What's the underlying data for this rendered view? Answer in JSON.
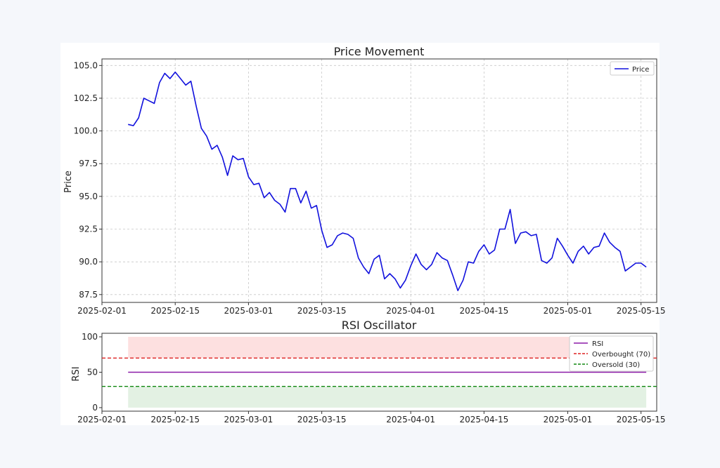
{
  "chart_data": [
    {
      "type": "line",
      "title": "Price Movement",
      "ylabel": "Price",
      "xlabel": "",
      "ylim": [
        86.9,
        105.5
      ],
      "xlim": [
        "2025-02-01",
        "2025-05-18"
      ],
      "grid": true,
      "legend_position": "top-right",
      "x_ticks": [
        "2025-02-01",
        "2025-02-15",
        "2025-03-01",
        "2025-03-15",
        "2025-04-01",
        "2025-04-15",
        "2025-05-01",
        "2025-05-15"
      ],
      "y_ticks": [
        "87.5",
        "90.0",
        "92.5",
        "95.0",
        "97.5",
        "100.0",
        "102.5",
        "105.0"
      ],
      "x_start": "2025-02-06",
      "series": [
        {
          "name": "Price",
          "color": "#1111dd",
          "values": [
            100.5,
            100.4,
            101.0,
            102.5,
            102.3,
            102.1,
            103.7,
            104.4,
            104.0,
            104.5,
            104.0,
            103.5,
            103.8,
            101.9,
            100.2,
            99.6,
            98.6,
            98.9,
            98.0,
            96.6,
            98.1,
            97.8,
            97.9,
            96.5,
            95.9,
            96.0,
            94.9,
            95.3,
            94.7,
            94.4,
            93.8,
            95.6,
            95.6,
            94.5,
            95.4,
            94.1,
            94.3,
            92.4,
            91.1,
            91.3,
            92.0,
            92.2,
            92.1,
            91.8,
            90.3,
            89.6,
            89.1,
            90.2,
            90.5,
            88.7,
            89.1,
            88.7,
            88.0,
            88.6,
            89.7,
            90.6,
            89.8,
            89.4,
            89.8,
            90.7,
            90.3,
            90.1,
            89.0,
            87.8,
            88.6,
            90.0,
            89.9,
            90.8,
            91.3,
            90.6,
            90.9,
            92.5,
            92.5,
            94.0,
            91.4,
            92.2,
            92.3,
            92.0,
            92.1,
            90.1,
            89.9,
            90.3,
            91.8,
            91.2,
            90.5,
            89.9,
            90.8,
            91.2,
            90.6,
            91.1,
            91.2,
            92.2,
            91.5,
            91.1,
            90.8,
            89.3,
            89.6,
            89.9,
            89.9,
            89.6
          ]
        }
      ]
    },
    {
      "type": "line",
      "title": "RSI Oscillator",
      "ylabel": "RSI",
      "xlabel": "",
      "ylim": [
        -5,
        105
      ],
      "xlim": [
        "2025-02-01",
        "2025-05-18"
      ],
      "grid": false,
      "legend_position": "top-right",
      "x_ticks": [
        "2025-02-01",
        "2025-02-15",
        "2025-03-01",
        "2025-03-15",
        "2025-04-01",
        "2025-04-15",
        "2025-05-01",
        "2025-05-15"
      ],
      "y_ticks": [
        "0",
        "50",
        "100"
      ],
      "x_range": [
        "2025-02-06",
        "2025-05-16"
      ],
      "series": [
        {
          "name": "RSI",
          "color": "#8b1aa8",
          "values": [
            50,
            50
          ]
        },
        {
          "name": "Overbought (70)",
          "color": "#dd2222",
          "style": "dashed",
          "value": 70
        },
        {
          "name": "Oversold (30)",
          "color": "#118811",
          "style": "dashed",
          "value": 30
        }
      ],
      "bands": [
        {
          "from": 70,
          "to": 100,
          "color": "#fde0e0"
        },
        {
          "from": 0,
          "to": 30,
          "color": "#e3f1e3"
        }
      ]
    }
  ]
}
